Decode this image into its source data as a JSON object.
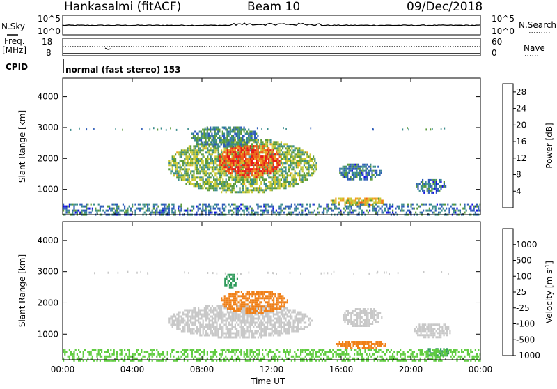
{
  "header": {
    "title": "Hankasalmi (fitACF)",
    "beam": "Beam 10",
    "date": "09/Dec/2018"
  },
  "summary_panels": {
    "nsky_label": "N.Sky",
    "nsky_ticks": [
      "10^5",
      "10^0"
    ],
    "nsearch_label": "N.Search",
    "nsearch_ticks": [
      "10^5",
      "10^0"
    ],
    "freq_label": "Freq.",
    "freq_unit": "[MHz]",
    "freq_ticks": [
      "18",
      "8"
    ],
    "nave_label": "Nave",
    "nave_ticks": [
      "60",
      "0"
    ],
    "cpid_label": "CPID",
    "cpid_text": "normal (fast stereo) 153"
  },
  "chart_data": [
    {
      "type": "heatmap",
      "title": "",
      "xlabel": "Time UT",
      "ylabel": "Slant Range [km]",
      "x_ticks": [
        "00:00",
        "04:00",
        "08:00",
        "12:00",
        "16:00",
        "20:00",
        "00:00"
      ],
      "x_range_hours": [
        0,
        24
      ],
      "y_ticks": [
        1000,
        2000,
        3000,
        4000
      ],
      "ylim": [
        180,
        4600
      ],
      "colorbar": {
        "label": "Power [dB]",
        "ticks": [
          "4",
          "8",
          "12",
          "16",
          "20",
          "24",
          "28"
        ],
        "range": [
          0,
          30
        ],
        "colors": [
          "#1010e0",
          "#2e5cb8",
          "#3a8c8c",
          "#5a9a3a",
          "#c8c832",
          "#f0a020",
          "#f06018",
          "#e81818"
        ]
      },
      "echo_regions": [
        {
          "name": "main-echo",
          "t_start": 6.0,
          "t_end": 14.6,
          "r_low": 900,
          "r_high": 2700,
          "value": 14
        },
        {
          "name": "core-echo",
          "t_start": 8.9,
          "t_end": 12.5,
          "r_low": 1400,
          "r_high": 2500,
          "value": 26
        },
        {
          "name": "plume",
          "t_start": 7.3,
          "t_end": 11.2,
          "r_low": 2400,
          "r_high": 3100,
          "value": 10
        },
        {
          "name": "band-16ut",
          "t_start": 15.3,
          "t_end": 18.5,
          "r_low": 500,
          "r_high": 800,
          "value": 18
        },
        {
          "name": "patch-17ut",
          "t_start": 15.8,
          "t_end": 18.3,
          "r_low": 1300,
          "r_high": 1900,
          "value": 8
        },
        {
          "name": "patch-21ut",
          "t_start": 20.2,
          "t_end": 22.0,
          "r_low": 900,
          "r_high": 1400,
          "value": 8
        },
        {
          "name": "near-range",
          "t_start": 0.0,
          "t_end": 24.0,
          "r_low": 180,
          "r_high": 550,
          "value": 8
        }
      ]
    },
    {
      "type": "heatmap",
      "title": "",
      "xlabel": "Time UT",
      "ylabel": "Slant Range [km]",
      "x_ticks": [
        "00:00",
        "04:00",
        "08:00",
        "12:00",
        "16:00",
        "20:00",
        "00:00"
      ],
      "x_range_hours": [
        0,
        24
      ],
      "y_ticks": [
        1000,
        2000,
        3000,
        4000
      ],
      "ylim": [
        180,
        4600
      ],
      "colorbar": {
        "label": "Velocity [m s",
        "label_sup": "-1",
        "label_close": "]",
        "ticks": [
          "1000",
          "500",
          "100",
          "25",
          "-25",
          "-100",
          "-500",
          "-1000"
        ],
        "colors": [
          "#2040c0",
          "#3a8ca0",
          "#2e9a5a",
          "#60cc40",
          "#c8c8c8",
          "#f0c030",
          "#f08018",
          "#e81818"
        ]
      },
      "echo_regions": [
        {
          "name": "gray-main",
          "t_start": 6.0,
          "t_end": 14.3,
          "r_low": 900,
          "r_high": 2000,
          "value": 0
        },
        {
          "name": "orange-band",
          "t_start": 9.0,
          "t_end": 12.9,
          "r_low": 1700,
          "r_high": 2450,
          "value": -300
        },
        {
          "name": "green-plume",
          "t_start": 9.2,
          "t_end": 10.0,
          "r_low": 2500,
          "r_high": 3000,
          "value": 150
        },
        {
          "name": "band-16ut",
          "t_start": 15.6,
          "t_end": 18.6,
          "r_low": 550,
          "r_high": 850,
          "value": -300
        },
        {
          "name": "gray-17ut",
          "t_start": 16.0,
          "t_end": 18.3,
          "r_low": 1250,
          "r_high": 1900,
          "value": 0
        },
        {
          "name": "gray-21ut",
          "t_start": 20.1,
          "t_end": 22.3,
          "r_low": 900,
          "r_high": 1400,
          "value": 0
        },
        {
          "name": "green-21ut",
          "t_start": 20.8,
          "t_end": 22.2,
          "r_low": 280,
          "r_high": 620,
          "value": 150
        },
        {
          "name": "near-range",
          "t_start": 0.0,
          "t_end": 24.0,
          "r_low": 180,
          "r_high": 520,
          "value": 40
        }
      ]
    }
  ]
}
